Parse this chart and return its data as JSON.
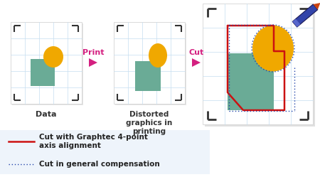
{
  "background_color": "#ffffff",
  "legend_bg": "#eef4fb",
  "panel_bg": "#ffffff",
  "panel_border": "#cccccc",
  "grid_color": "#c5ddf0",
  "rect_color": "#6aab96",
  "circle_color": "#f0a800",
  "corner_mark_color": "#333333",
  "arrow_color": "#d42080",
  "print_label": "Print",
  "cut_label": "Cut",
  "data_label": "Data",
  "distorted_label": "Distorted\ngraphics in\nprinting",
  "legend1_label": "Cut with Graphtec 4-point\naxis alignment",
  "legend2_label": "Cut in general compensation",
  "red_line_color": "#cc1111",
  "blue_dot_color": "#2244aa",
  "pen_body_color": "#3344aa",
  "pen_tip_color": "#cc4411",
  "label_color": "#333333",
  "highlight_color": "#d42080"
}
